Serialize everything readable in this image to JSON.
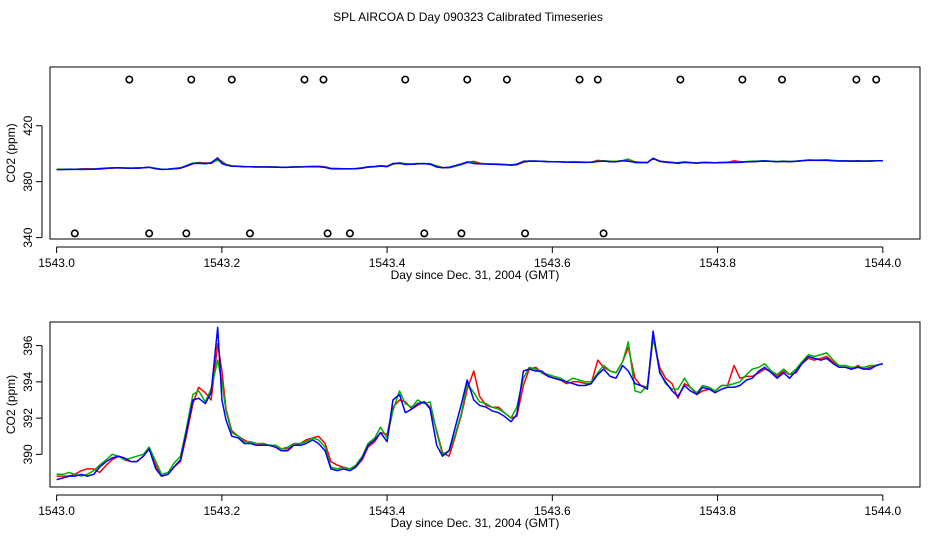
{
  "title": "SPL AIRCOA D  Day 090323  Calibrated Timeseries",
  "colors": {
    "red": "#ff0000",
    "green": "#00b000",
    "blue": "#0000ff",
    "axis": "#000000"
  },
  "chart_data": [
    {
      "type": "line",
      "name": "full-range",
      "xlabel": "Day since Dec. 31, 2004 (GMT)",
      "ylabel": "CO2 (ppm)",
      "xlim": [
        1542.992,
        1544.045
      ],
      "ylim": [
        339,
        462
      ],
      "xticks": [
        1543.0,
        1543.2,
        1543.4,
        1543.6,
        1543.8,
        1544.0
      ],
      "xtick_labels": [
        "1543.0",
        "1543.2",
        "1543.4",
        "1543.6",
        "1543.8",
        "1544.0"
      ],
      "yticks": [
        340,
        380,
        420
      ],
      "ytick_labels": [
        "340",
        "380",
        "420"
      ],
      "markers_high": {
        "y": 453,
        "x": [
          1543.088,
          1543.163,
          1543.212,
          1543.3,
          1543.323,
          1543.422,
          1543.497,
          1543.545,
          1543.633,
          1543.655,
          1543.755,
          1543.83,
          1543.878,
          1543.968,
          1543.992
        ]
      },
      "markers_low": {
        "y": 343,
        "x": [
          1543.022,
          1543.112,
          1543.157,
          1543.234,
          1543.328,
          1543.355,
          1543.445,
          1543.49,
          1543.567,
          1543.662
        ]
      }
    },
    {
      "type": "line",
      "name": "zoom",
      "xlabel": "Day since Dec. 31, 2004 (GMT)",
      "ylabel": "CO2 (ppm)",
      "xlim": [
        1542.992,
        1544.045
      ],
      "ylim": [
        388.2,
        397.3
      ],
      "xticks": [
        1543.0,
        1543.2,
        1543.4,
        1543.6,
        1543.8,
        1544.0
      ],
      "xtick_labels": [
        "1543.0",
        "1543.2",
        "1543.4",
        "1543.6",
        "1543.8",
        "1544.0"
      ],
      "yticks": [
        390,
        392,
        394,
        396
      ],
      "ytick_labels": [
        "390",
        "392",
        "394",
        "396"
      ],
      "x": [
        1543.0,
        1543.008,
        1543.015,
        1543.022,
        1543.03,
        1543.037,
        1543.045,
        1543.052,
        1543.06,
        1543.067,
        1543.075,
        1543.082,
        1543.09,
        1543.097,
        1543.105,
        1543.112,
        1543.12,
        1543.127,
        1543.135,
        1543.142,
        1543.15,
        1543.157,
        1543.165,
        1543.172,
        1543.18,
        1543.187,
        1543.195,
        1543.2,
        1543.205,
        1543.212,
        1543.22,
        1543.227,
        1543.235,
        1543.242,
        1543.25,
        1543.257,
        1543.265,
        1543.272,
        1543.28,
        1543.287,
        1543.295,
        1543.302,
        1543.31,
        1543.317,
        1543.325,
        1543.332,
        1543.34,
        1543.347,
        1543.355,
        1543.362,
        1543.37,
        1543.377,
        1543.385,
        1543.392,
        1543.4,
        1543.407,
        1543.415,
        1543.422,
        1543.43,
        1543.437,
        1543.445,
        1543.452,
        1543.46,
        1543.467,
        1543.475,
        1543.482,
        1543.49,
        1543.497,
        1543.505,
        1543.512,
        1543.52,
        1543.527,
        1543.535,
        1543.542,
        1543.55,
        1543.557,
        1543.565,
        1543.572,
        1543.58,
        1543.587,
        1543.595,
        1543.602,
        1543.61,
        1543.617,
        1543.625,
        1543.632,
        1543.64,
        1543.647,
        1543.655,
        1543.662,
        1543.67,
        1543.677,
        1543.685,
        1543.692,
        1543.7,
        1543.707,
        1543.715,
        1543.722,
        1543.73,
        1543.737,
        1543.745,
        1543.752,
        1543.76,
        1543.767,
        1543.775,
        1543.782,
        1543.79,
        1543.797,
        1543.805,
        1543.812,
        1543.82,
        1543.827,
        1543.835,
        1543.842,
        1543.85,
        1543.857,
        1543.865,
        1543.872,
        1543.88,
        1543.887,
        1543.895,
        1543.902,
        1543.91,
        1543.917,
        1543.925,
        1543.932,
        1543.94,
        1543.947,
        1543.955,
        1543.962,
        1543.97,
        1543.977,
        1543.985,
        1543.992,
        1544.0
      ],
      "series": [
        {
          "name": "blue",
          "color": "#0000ff",
          "values": [
            388.6,
            388.7,
            388.8,
            388.8,
            388.9,
            388.8,
            388.9,
            389.3,
            389.6,
            389.8,
            389.9,
            389.8,
            389.6,
            389.6,
            389.9,
            390.3,
            389.2,
            388.8,
            388.9,
            389.3,
            389.7,
            391.2,
            393.0,
            393.1,
            392.8,
            393.4,
            397.0,
            393.0,
            391.9,
            391.0,
            390.9,
            390.6,
            390.6,
            390.5,
            390.5,
            390.5,
            390.4,
            390.2,
            390.2,
            390.5,
            390.5,
            390.6,
            390.8,
            390.6,
            390.2,
            389.2,
            389.1,
            389.2,
            389.1,
            389.3,
            389.8,
            390.5,
            390.8,
            391.2,
            390.7,
            393.0,
            393.3,
            392.3,
            392.5,
            392.8,
            392.9,
            392.5,
            390.5,
            389.9,
            390.2,
            391.4,
            392.8,
            394.1,
            393.0,
            392.7,
            392.6,
            392.4,
            392.3,
            392.1,
            391.8,
            392.2,
            394.6,
            394.7,
            394.6,
            394.6,
            394.3,
            394.2,
            394.1,
            394.0,
            393.9,
            393.8,
            393.8,
            393.9,
            394.4,
            394.7,
            394.3,
            394.2,
            394.9,
            394.6,
            393.9,
            393.8,
            393.6,
            396.8,
            394.5,
            394.0,
            393.5,
            393.2,
            393.8,
            393.5,
            393.3,
            393.7,
            393.6,
            393.4,
            393.6,
            393.7,
            393.7,
            393.8,
            394.1,
            394.2,
            394.6,
            394.8,
            394.5,
            394.2,
            394.5,
            394.2,
            394.6,
            395.0,
            395.4,
            395.3,
            395.2,
            395.3,
            395.0,
            394.8,
            394.8,
            394.7,
            394.8,
            394.7,
            394.7,
            394.9,
            395.0
          ]
        },
        {
          "name": "green",
          "color": "#00b000",
          "values": [
            388.9,
            388.9,
            389.0,
            388.9,
            388.8,
            388.9,
            389.1,
            389.4,
            389.7,
            390.0,
            389.9,
            389.7,
            389.8,
            389.9,
            390.0,
            390.4,
            389.6,
            388.9,
            389.0,
            389.5,
            389.9,
            391.4,
            393.3,
            393.5,
            392.9,
            393.6,
            395.2,
            394.0,
            392.4,
            391.2,
            391.0,
            390.7,
            390.7,
            390.6,
            390.6,
            390.5,
            390.5,
            390.3,
            390.4,
            390.6,
            390.6,
            390.7,
            390.9,
            390.8,
            390.4,
            389.3,
            389.2,
            389.3,
            389.2,
            389.4,
            389.9,
            390.6,
            390.9,
            391.5,
            390.9,
            392.4,
            393.5,
            392.8,
            392.6,
            393.0,
            392.8,
            392.9,
            391.2,
            390.0,
            390.2,
            391.0,
            392.3,
            393.9,
            393.4,
            392.9,
            392.8,
            392.6,
            392.5,
            392.3,
            392.0,
            392.6,
            394.2,
            394.8,
            394.7,
            394.5,
            394.4,
            394.3,
            394.2,
            394.0,
            394.2,
            394.1,
            394.0,
            394.0,
            394.5,
            394.9,
            394.6,
            394.5,
            395.1,
            396.2,
            393.5,
            393.4,
            393.8,
            396.5,
            394.6,
            393.9,
            393.6,
            393.6,
            394.2,
            393.7,
            393.4,
            393.8,
            393.7,
            393.5,
            393.8,
            393.8,
            393.9,
            394.0,
            394.4,
            394.7,
            394.8,
            395.0,
            394.6,
            394.4,
            394.7,
            394.4,
            394.7,
            395.1,
            395.5,
            395.4,
            395.5,
            395.6,
            395.2,
            394.9,
            394.9,
            394.8,
            394.8,
            394.8,
            394.9,
            394.9,
            395.0
          ]
        },
        {
          "name": "red",
          "color": "#ff0000",
          "values": [
            388.8,
            388.8,
            388.8,
            388.9,
            389.1,
            389.2,
            389.2,
            389.0,
            389.4,
            389.7,
            389.9,
            389.7,
            389.6,
            389.6,
            389.9,
            390.3,
            389.4,
            388.8,
            388.9,
            389.3,
            389.6,
            391.0,
            392.8,
            393.7,
            393.4,
            393.0,
            396.1,
            394.6,
            392.5,
            391.3,
            391.0,
            390.8,
            390.6,
            390.5,
            390.6,
            390.5,
            390.5,
            390.3,
            390.3,
            390.5,
            390.6,
            390.8,
            390.9,
            391.0,
            390.6,
            389.6,
            389.4,
            389.3,
            389.2,
            389.3,
            389.7,
            390.4,
            390.7,
            391.2,
            391.1,
            392.6,
            393.0,
            392.9,
            392.5,
            392.7,
            392.9,
            392.6,
            391.3,
            390.1,
            389.9,
            390.9,
            392.2,
            393.6,
            394.6,
            393.2,
            392.7,
            392.6,
            392.6,
            392.3,
            392.0,
            392.1,
            393.8,
            394.7,
            394.8,
            394.5,
            394.3,
            394.2,
            394.1,
            393.9,
            394.0,
            394.0,
            393.9,
            393.9,
            395.2,
            394.8,
            394.6,
            394.5,
            395.1,
            395.9,
            394.2,
            393.8,
            393.7,
            396.4,
            394.8,
            394.2,
            393.9,
            393.1,
            393.9,
            393.7,
            393.3,
            393.5,
            393.6,
            393.5,
            393.8,
            393.8,
            394.9,
            394.2,
            394.3,
            394.3,
            394.5,
            394.7,
            394.6,
            394.3,
            394.6,
            394.4,
            394.5,
            395.0,
            395.3,
            395.2,
            395.3,
            395.4,
            395.1,
            394.8,
            394.8,
            394.7,
            394.9,
            394.7,
            394.8,
            394.9,
            395.0
          ]
        }
      ]
    }
  ]
}
